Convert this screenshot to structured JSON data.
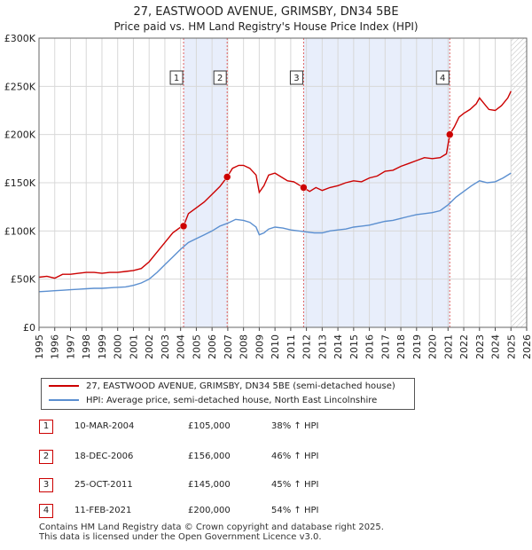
{
  "title": "27, EASTWOOD AVENUE, GRIMSBY, DN34 5BE",
  "subtitle": "Price paid vs. HM Land Registry's House Price Index (HPI)",
  "legend": {
    "property_label": "27, EASTWOOD AVENUE, GRIMSBY, DN34 5BE (semi-detached house)",
    "hpi_label": "HPI: Average price, semi-detached house, North East Lincolnshire"
  },
  "sales": [
    {
      "num": "1",
      "date": "10-MAR-2004",
      "price": "£105,000",
      "hpi": "38% ↑ HPI"
    },
    {
      "num": "2",
      "date": "18-DEC-2006",
      "price": "£156,000",
      "hpi": "46% ↑ HPI"
    },
    {
      "num": "3",
      "date": "25-OCT-2011",
      "price": "£145,000",
      "hpi": "45% ↑ HPI"
    },
    {
      "num": "4",
      "date": "11-FEB-2021",
      "price": "£200,000",
      "hpi": "54% ↑ HPI"
    }
  ],
  "footer": {
    "line1": "Contains HM Land Registry data © Crown copyright and database right 2025.",
    "line2": "This data is licensed under the Open Government Licence v3.0."
  },
  "colors": {
    "property": "#cc0000",
    "hpi": "#5b8fd0",
    "shade": "#e8eefb",
    "grid": "#d8d8d8",
    "marker_line": "#e06060"
  },
  "chart_data": {
    "type": "line",
    "title": "27, EASTWOOD AVENUE, GRIMSBY, DN34 5BE",
    "subtitle": "Price paid vs. HM Land Registry's House Price Index (HPI)",
    "xlabel": "",
    "ylabel": "",
    "xlim": [
      1995,
      2026
    ],
    "ylim": [
      0,
      300000
    ],
    "x_ticks": [
      1995,
      1996,
      1997,
      1998,
      1999,
      2000,
      2001,
      2002,
      2003,
      2004,
      2005,
      2006,
      2007,
      2008,
      2009,
      2010,
      2011,
      2012,
      2013,
      2014,
      2015,
      2016,
      2017,
      2018,
      2019,
      2020,
      2021,
      2022,
      2023,
      2024,
      2025,
      2026
    ],
    "y_ticks": [
      {
        "value": 0,
        "label": "£0"
      },
      {
        "value": 50000,
        "label": "£50K"
      },
      {
        "value": 100000,
        "label": "£100K"
      },
      {
        "value": 150000,
        "label": "£150K"
      },
      {
        "value": 200000,
        "label": "£200K"
      },
      {
        "value": 250000,
        "label": "£250K"
      },
      {
        "value": 300000,
        "label": "£300K"
      }
    ],
    "grid": true,
    "shaded_periods": [
      [
        2004.19,
        2006.96
      ],
      [
        2011.82,
        2021.11
      ]
    ],
    "forecast_start": 2025.0,
    "series": [
      {
        "name": "27, EASTWOOD AVENUE, GRIMSBY, DN34 5BE (semi-detached house)",
        "x": [
          1995.0,
          1995.5,
          1996.0,
          1996.5,
          1997.0,
          1997.5,
          1998.0,
          1998.5,
          1999.0,
          1999.5,
          2000.0,
          2000.5,
          2001.0,
          2001.5,
          2002.0,
          2002.5,
          2003.0,
          2003.5,
          2004.0,
          2004.19,
          2004.5,
          2005.0,
          2005.5,
          2006.0,
          2006.5,
          2006.96,
          2007.3,
          2007.7,
          2008.0,
          2008.4,
          2008.8,
          2009.0,
          2009.3,
          2009.6,
          2010.0,
          2010.4,
          2010.8,
          2011.2,
          2011.5,
          2011.82,
          2012.2,
          2012.6,
          2013.0,
          2013.5,
          2014.0,
          2014.5,
          2015.0,
          2015.5,
          2016.0,
          2016.5,
          2017.0,
          2017.5,
          2018.0,
          2018.5,
          2019.0,
          2019.5,
          2020.0,
          2020.5,
          2020.9,
          2021.11,
          2021.4,
          2021.7,
          2022.0,
          2022.4,
          2022.8,
          2023.0,
          2023.3,
          2023.6,
          2024.0,
          2024.4,
          2024.8,
          2025.0
        ],
        "values": [
          52000,
          53000,
          51000,
          55000,
          55000,
          56000,
          57000,
          57000,
          56000,
          57000,
          57000,
          58000,
          59000,
          61000,
          68000,
          78000,
          88000,
          98000,
          104000,
          105000,
          118000,
          124000,
          130000,
          138000,
          146000,
          156000,
          165000,
          168000,
          168000,
          165000,
          158000,
          140000,
          147000,
          158000,
          160000,
          156000,
          152000,
          151000,
          148000,
          145000,
          141000,
          145000,
          142000,
          145000,
          147000,
          150000,
          152000,
          151000,
          155000,
          157000,
          162000,
          163000,
          167000,
          170000,
          173000,
          176000,
          175000,
          176000,
          180000,
          200000,
          208000,
          218000,
          222000,
          226000,
          232000,
          238000,
          232000,
          226000,
          225000,
          230000,
          238000,
          245000
        ],
        "color": "#cc0000"
      },
      {
        "name": "HPI: Average price, semi-detached house, North East Lincolnshire",
        "x": [
          1995.0,
          1995.5,
          1996.0,
          1996.5,
          1997.0,
          1997.5,
          1998.0,
          1998.5,
          1999.0,
          1999.5,
          2000.0,
          2000.5,
          2001.0,
          2001.5,
          2002.0,
          2002.5,
          2003.0,
          2003.5,
          2004.0,
          2004.5,
          2005.0,
          2005.5,
          2006.0,
          2006.5,
          2007.0,
          2007.5,
          2008.0,
          2008.4,
          2008.8,
          2009.0,
          2009.3,
          2009.6,
          2010.0,
          2010.5,
          2011.0,
          2011.5,
          2012.0,
          2012.5,
          2013.0,
          2013.5,
          2014.0,
          2014.5,
          2015.0,
          2015.5,
          2016.0,
          2016.5,
          2017.0,
          2017.5,
          2018.0,
          2018.5,
          2019.0,
          2019.5,
          2020.0,
          2020.5,
          2021.0,
          2021.5,
          2022.0,
          2022.5,
          2023.0,
          2023.5,
          2024.0,
          2024.5,
          2025.0
        ],
        "values": [
          37000,
          37500,
          38000,
          38500,
          39000,
          39500,
          40000,
          40500,
          40500,
          41000,
          41500,
          42000,
          43500,
          46000,
          50000,
          57000,
          65000,
          73000,
          81000,
          88000,
          92000,
          96000,
          100000,
          105000,
          108000,
          112000,
          111000,
          109000,
          104000,
          96000,
          98000,
          102000,
          104000,
          103000,
          101000,
          100000,
          99000,
          98000,
          98000,
          100000,
          101000,
          102000,
          104000,
          105000,
          106000,
          108000,
          110000,
          111000,
          113000,
          115000,
          117000,
          118000,
          119000,
          121000,
          127000,
          135000,
          141000,
          147000,
          152000,
          150000,
          151000,
          155000,
          160000
        ],
        "color": "#5b8fd0"
      }
    ],
    "sale_markers": [
      {
        "label": "1",
        "x": 2004.19,
        "y": 105000
      },
      {
        "label": "2",
        "x": 2006.96,
        "y": 156000
      },
      {
        "label": "3",
        "x": 2011.82,
        "y": 145000
      },
      {
        "label": "4",
        "x": 2021.11,
        "y": 200000
      }
    ]
  }
}
